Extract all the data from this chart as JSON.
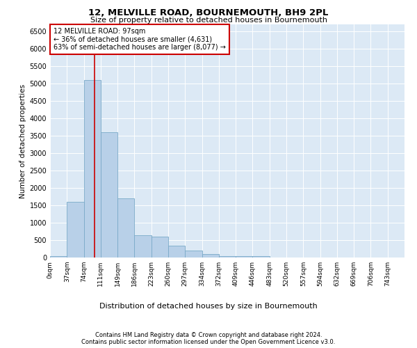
{
  "title": "12, MELVILLE ROAD, BOURNEMOUTH, BH9 2PL",
  "subtitle": "Size of property relative to detached houses in Bournemouth",
  "xlabel": "Distribution of detached houses by size in Bournemouth",
  "ylabel": "Number of detached properties",
  "bin_labels": [
    "0sqm",
    "37sqm",
    "74sqm",
    "111sqm",
    "149sqm",
    "186sqm",
    "223sqm",
    "260sqm",
    "297sqm",
    "334sqm",
    "372sqm",
    "409sqm",
    "446sqm",
    "483sqm",
    "520sqm",
    "557sqm",
    "594sqm",
    "632sqm",
    "669sqm",
    "706sqm",
    "743sqm"
  ],
  "bar_heights": [
    50,
    1600,
    5100,
    3600,
    1700,
    650,
    600,
    350,
    200,
    100,
    50,
    50,
    50,
    0,
    0,
    0,
    0,
    0,
    0,
    0,
    0
  ],
  "bar_color": "#b8d0e8",
  "bar_edge_color": "#7aaac8",
  "background_color": "#dce9f5",
  "vline_color": "#cc0000",
  "annotation_text": "12 MELVILLE ROAD: 97sqm\n← 36% of detached houses are smaller (4,631)\n63% of semi-detached houses are larger (8,077) →",
  "annotation_box_color": "#ffffff",
  "annotation_box_edge": "#cc0000",
  "ylim_max": 6700,
  "yticks": [
    0,
    500,
    1000,
    1500,
    2000,
    2500,
    3000,
    3500,
    4000,
    4500,
    5000,
    5500,
    6000,
    6500
  ],
  "footer_line1": "Contains HM Land Registry data © Crown copyright and database right 2024.",
  "footer_line2": "Contains public sector information licensed under the Open Government Licence v3.0."
}
